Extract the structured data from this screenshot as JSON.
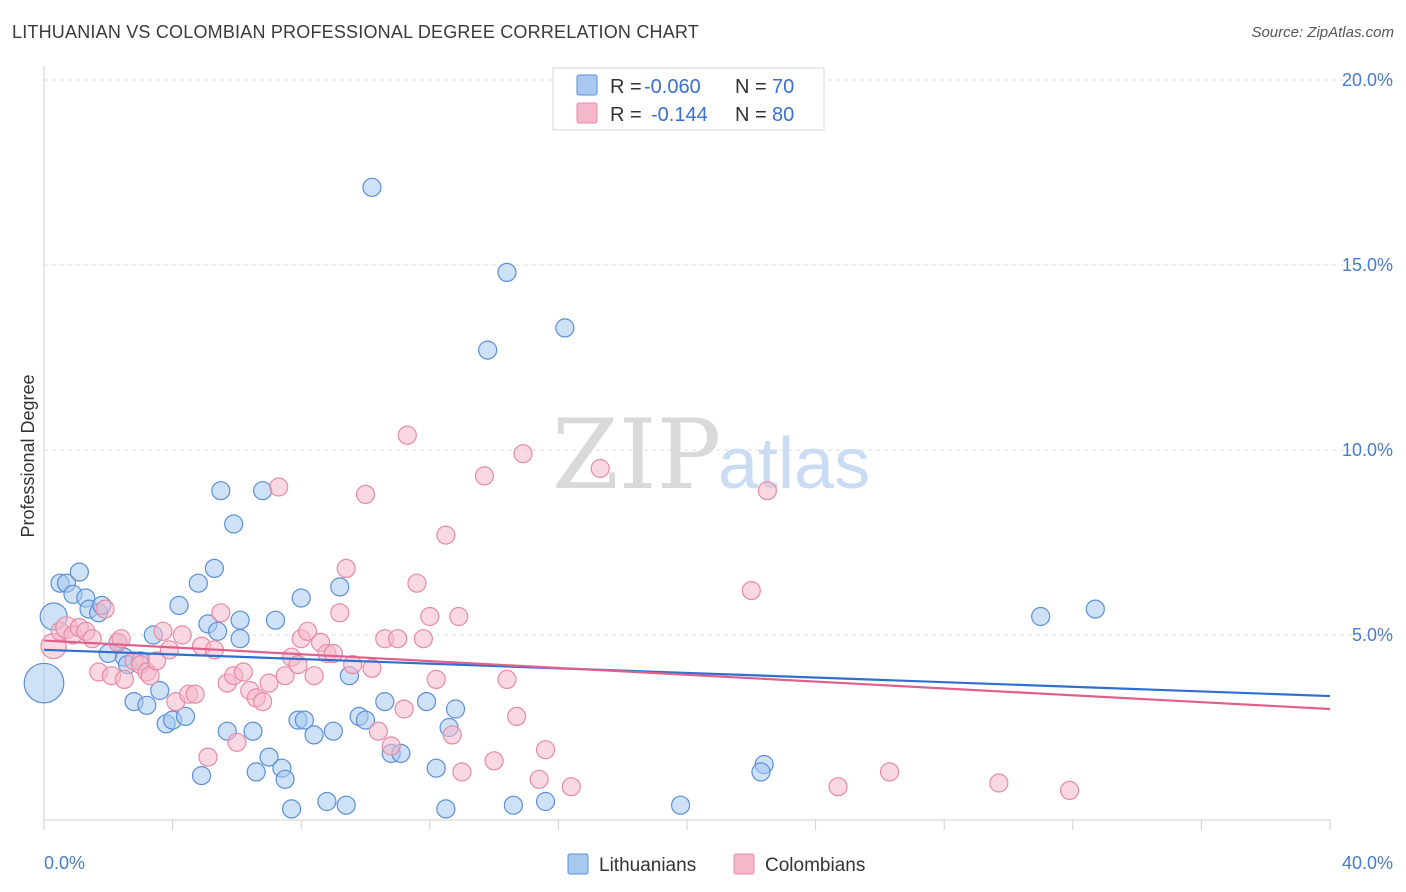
{
  "header": {
    "title": "LITHUANIAN VS COLOMBIAN PROFESSIONAL DEGREE CORRELATION CHART",
    "source": "Source: ZipAtlas.com"
  },
  "watermark": {
    "zip": "ZIP",
    "atlas": "atlas"
  },
  "legend": {
    "rows": [
      {
        "r_label": "R =",
        "r_value": "-0.060",
        "n_label": "N =",
        "n_value": "70",
        "color": "#a8c8f0"
      },
      {
        "r_label": "R =",
        "r_value": "-0.144",
        "n_label": "N =",
        "n_value": "80",
        "color": "#f5b8c8"
      }
    ]
  },
  "bottom_legend": [
    {
      "label": "Lithuanians",
      "color": "#a8c8f0"
    },
    {
      "label": "Colombians",
      "color": "#f5b8c8"
    }
  ],
  "colors": {
    "blue_fill": "#a8c8f0",
    "blue_stroke": "#5b8fd6",
    "blue_line": "#2f6fd0",
    "pink_fill": "#f5b8c8",
    "pink_stroke": "#e68aa6",
    "pink_line": "#e0608c",
    "tick": "#4a7bc8",
    "grid": "#dcdcdc"
  },
  "chart_data": {
    "type": "scatter",
    "title": "LITHUANIAN VS COLOMBIAN PROFESSIONAL DEGREE CORRELATION CHART",
    "xlabel": "",
    "ylabel": "Professional Degree",
    "xlim": [
      0,
      40
    ],
    "ylim": [
      0,
      20
    ],
    "x_tick_labels": [
      "0.0%",
      "40.0%"
    ],
    "y_ticks": [
      5,
      10,
      15,
      20
    ],
    "y_tick_labels": [
      "5.0%",
      "10.0%",
      "15.0%",
      "20.0%"
    ],
    "grid": true,
    "legend_placement": "top-center",
    "series": [
      {
        "name": "Lithuanians",
        "r": -0.06,
        "n": 70,
        "trend": {
          "x": [
            0,
            40
          ],
          "y": [
            4.6,
            3.35
          ]
        },
        "points": [
          {
            "x": 0.0,
            "y": 3.7,
            "s": 2.2
          },
          {
            "x": 0.3,
            "y": 5.5,
            "s": 1.5
          },
          {
            "x": 0.5,
            "y": 6.4,
            "s": 1
          },
          {
            "x": 0.7,
            "y": 6.4,
            "s": 1
          },
          {
            "x": 0.9,
            "y": 6.1,
            "s": 1
          },
          {
            "x": 1.1,
            "y": 6.7,
            "s": 1
          },
          {
            "x": 1.3,
            "y": 6.0,
            "s": 1
          },
          {
            "x": 1.4,
            "y": 5.7,
            "s": 1
          },
          {
            "x": 1.7,
            "y": 5.6,
            "s": 1
          },
          {
            "x": 1.8,
            "y": 5.8,
            "s": 1
          },
          {
            "x": 2.0,
            "y": 4.5,
            "s": 1
          },
          {
            "x": 2.3,
            "y": 4.8,
            "s": 1
          },
          {
            "x": 2.5,
            "y": 4.4,
            "s": 1
          },
          {
            "x": 2.6,
            "y": 4.2,
            "s": 1
          },
          {
            "x": 2.8,
            "y": 3.2,
            "s": 1
          },
          {
            "x": 3.0,
            "y": 4.3,
            "s": 1
          },
          {
            "x": 3.2,
            "y": 3.1,
            "s": 1
          },
          {
            "x": 3.4,
            "y": 5.0,
            "s": 1
          },
          {
            "x": 3.6,
            "y": 3.5,
            "s": 1
          },
          {
            "x": 3.8,
            "y": 2.6,
            "s": 1
          },
          {
            "x": 4.0,
            "y": 2.7,
            "s": 1
          },
          {
            "x": 4.2,
            "y": 5.8,
            "s": 1
          },
          {
            "x": 4.4,
            "y": 2.8,
            "s": 1
          },
          {
            "x": 4.8,
            "y": 6.4,
            "s": 1
          },
          {
            "x": 4.9,
            "y": 1.2,
            "s": 1
          },
          {
            "x": 5.1,
            "y": 5.3,
            "s": 1
          },
          {
            "x": 5.3,
            "y": 6.8,
            "s": 1
          },
          {
            "x": 5.4,
            "y": 5.1,
            "s": 1
          },
          {
            "x": 5.5,
            "y": 8.9,
            "s": 1
          },
          {
            "x": 5.9,
            "y": 8.0,
            "s": 1
          },
          {
            "x": 5.7,
            "y": 2.4,
            "s": 1
          },
          {
            "x": 6.1,
            "y": 5.4,
            "s": 1
          },
          {
            "x": 6.1,
            "y": 4.9,
            "s": 1
          },
          {
            "x": 6.5,
            "y": 2.4,
            "s": 1
          },
          {
            "x": 6.6,
            "y": 1.3,
            "s": 1
          },
          {
            "x": 6.8,
            "y": 8.9,
            "s": 1
          },
          {
            "x": 7.0,
            "y": 1.7,
            "s": 1
          },
          {
            "x": 7.2,
            "y": 5.4,
            "s": 1
          },
          {
            "x": 7.4,
            "y": 1.4,
            "s": 1
          },
          {
            "x": 7.5,
            "y": 1.1,
            "s": 1
          },
          {
            "x": 7.7,
            "y": 0.3,
            "s": 1
          },
          {
            "x": 7.9,
            "y": 2.7,
            "s": 1
          },
          {
            "x": 8.0,
            "y": 6.0,
            "s": 1
          },
          {
            "x": 8.1,
            "y": 2.7,
            "s": 1
          },
          {
            "x": 8.4,
            "y": 2.3,
            "s": 1
          },
          {
            "x": 8.8,
            "y": 0.5,
            "s": 1
          },
          {
            "x": 9.0,
            "y": 2.4,
            "s": 1
          },
          {
            "x": 9.2,
            "y": 6.3,
            "s": 1
          },
          {
            "x": 9.4,
            "y": 0.4,
            "s": 1
          },
          {
            "x": 9.5,
            "y": 3.9,
            "s": 1
          },
          {
            "x": 9.8,
            "y": 2.8,
            "s": 1
          },
          {
            "x": 10.0,
            "y": 2.7,
            "s": 1
          },
          {
            "x": 10.2,
            "y": 17.1,
            "s": 1
          },
          {
            "x": 10.6,
            "y": 3.2,
            "s": 1
          },
          {
            "x": 10.8,
            "y": 1.8,
            "s": 1
          },
          {
            "x": 11.1,
            "y": 1.8,
            "s": 1
          },
          {
            "x": 11.9,
            "y": 3.2,
            "s": 1
          },
          {
            "x": 12.2,
            "y": 1.4,
            "s": 1
          },
          {
            "x": 12.5,
            "y": 0.3,
            "s": 1
          },
          {
            "x": 12.6,
            "y": 2.5,
            "s": 1
          },
          {
            "x": 12.8,
            "y": 3.0,
            "s": 1
          },
          {
            "x": 13.8,
            "y": 12.7,
            "s": 1
          },
          {
            "x": 14.4,
            "y": 14.8,
            "s": 1
          },
          {
            "x": 14.6,
            "y": 0.4,
            "s": 1
          },
          {
            "x": 15.6,
            "y": 0.5,
            "s": 1
          },
          {
            "x": 16.2,
            "y": 13.3,
            "s": 1
          },
          {
            "x": 19.8,
            "y": 0.4,
            "s": 1
          },
          {
            "x": 22.4,
            "y": 1.5,
            "s": 1
          },
          {
            "x": 22.3,
            "y": 1.3,
            "s": 1
          },
          {
            "x": 31.0,
            "y": 5.5,
            "s": 1
          },
          {
            "x": 32.7,
            "y": 5.7,
            "s": 1
          }
        ]
      },
      {
        "name": "Colombians",
        "r": -0.144,
        "n": 80,
        "trend": {
          "x": [
            0,
            40
          ],
          "y": [
            4.85,
            3.0
          ]
        },
        "points": [
          {
            "x": 0.3,
            "y": 4.7,
            "s": 1.4
          },
          {
            "x": 0.5,
            "y": 5.1,
            "s": 1
          },
          {
            "x": 0.7,
            "y": 5.2,
            "s": 1.2
          },
          {
            "x": 0.9,
            "y": 5.0,
            "s": 1
          },
          {
            "x": 1.1,
            "y": 5.2,
            "s": 1
          },
          {
            "x": 1.3,
            "y": 5.1,
            "s": 1
          },
          {
            "x": 1.5,
            "y": 4.9,
            "s": 1
          },
          {
            "x": 1.7,
            "y": 4.0,
            "s": 1
          },
          {
            "x": 1.9,
            "y": 5.7,
            "s": 1
          },
          {
            "x": 2.1,
            "y": 3.9,
            "s": 1
          },
          {
            "x": 2.3,
            "y": 4.8,
            "s": 1
          },
          {
            "x": 2.5,
            "y": 3.8,
            "s": 1
          },
          {
            "x": 2.8,
            "y": 4.3,
            "s": 1
          },
          {
            "x": 3.0,
            "y": 4.2,
            "s": 1
          },
          {
            "x": 3.2,
            "y": 4.0,
            "s": 1
          },
          {
            "x": 3.3,
            "y": 3.9,
            "s": 1
          },
          {
            "x": 3.5,
            "y": 4.3,
            "s": 1
          },
          {
            "x": 3.7,
            "y": 5.1,
            "s": 1
          },
          {
            "x": 3.9,
            "y": 4.6,
            "s": 1
          },
          {
            "x": 4.1,
            "y": 3.2,
            "s": 1
          },
          {
            "x": 4.3,
            "y": 5.0,
            "s": 1
          },
          {
            "x": 4.5,
            "y": 3.4,
            "s": 1
          },
          {
            "x": 4.7,
            "y": 3.4,
            "s": 1
          },
          {
            "x": 4.9,
            "y": 4.7,
            "s": 1
          },
          {
            "x": 5.1,
            "y": 1.7,
            "s": 1
          },
          {
            "x": 5.3,
            "y": 4.6,
            "s": 1
          },
          {
            "x": 5.5,
            "y": 5.6,
            "s": 1
          },
          {
            "x": 5.7,
            "y": 3.7,
            "s": 1
          },
          {
            "x": 5.9,
            "y": 3.9,
            "s": 1
          },
          {
            "x": 6.0,
            "y": 2.1,
            "s": 1
          },
          {
            "x": 6.2,
            "y": 4.0,
            "s": 1
          },
          {
            "x": 6.4,
            "y": 3.5,
            "s": 1
          },
          {
            "x": 6.6,
            "y": 3.3,
            "s": 1
          },
          {
            "x": 6.8,
            "y": 3.2,
            "s": 1
          },
          {
            "x": 7.0,
            "y": 3.7,
            "s": 1
          },
          {
            "x": 7.3,
            "y": 9.0,
            "s": 1
          },
          {
            "x": 7.5,
            "y": 3.9,
            "s": 1
          },
          {
            "x": 7.7,
            "y": 4.4,
            "s": 1
          },
          {
            "x": 7.9,
            "y": 4.2,
            "s": 1
          },
          {
            "x": 8.0,
            "y": 4.9,
            "s": 1
          },
          {
            "x": 8.2,
            "y": 5.1,
            "s": 1
          },
          {
            "x": 8.4,
            "y": 3.9,
            "s": 1
          },
          {
            "x": 8.6,
            "y": 4.8,
            "s": 1
          },
          {
            "x": 8.8,
            "y": 4.5,
            "s": 1
          },
          {
            "x": 9.0,
            "y": 4.5,
            "s": 1
          },
          {
            "x": 9.2,
            "y": 5.6,
            "s": 1
          },
          {
            "x": 9.4,
            "y": 6.8,
            "s": 1
          },
          {
            "x": 9.6,
            "y": 4.2,
            "s": 1
          },
          {
            "x": 10.0,
            "y": 8.8,
            "s": 1
          },
          {
            "x": 10.2,
            "y": 4.1,
            "s": 1
          },
          {
            "x": 10.4,
            "y": 2.4,
            "s": 1
          },
          {
            "x": 10.6,
            "y": 4.9,
            "s": 1
          },
          {
            "x": 10.8,
            "y": 2.0,
            "s": 1
          },
          {
            "x": 11.0,
            "y": 4.9,
            "s": 1
          },
          {
            "x": 11.2,
            "y": 3.0,
            "s": 1
          },
          {
            "x": 11.3,
            "y": 10.4,
            "s": 1
          },
          {
            "x": 11.6,
            "y": 6.4,
            "s": 1
          },
          {
            "x": 11.8,
            "y": 4.9,
            "s": 1
          },
          {
            "x": 12.0,
            "y": 5.5,
            "s": 1
          },
          {
            "x": 12.2,
            "y": 3.8,
            "s": 1
          },
          {
            "x": 12.5,
            "y": 7.7,
            "s": 1
          },
          {
            "x": 12.7,
            "y": 2.3,
            "s": 1
          },
          {
            "x": 12.9,
            "y": 5.5,
            "s": 1
          },
          {
            "x": 13.0,
            "y": 1.3,
            "s": 1
          },
          {
            "x": 13.7,
            "y": 9.3,
            "s": 1
          },
          {
            "x": 14.0,
            "y": 1.6,
            "s": 1
          },
          {
            "x": 14.4,
            "y": 3.8,
            "s": 1
          },
          {
            "x": 14.7,
            "y": 2.8,
            "s": 1
          },
          {
            "x": 14.9,
            "y": 9.9,
            "s": 1
          },
          {
            "x": 15.4,
            "y": 1.1,
            "s": 1
          },
          {
            "x": 15.6,
            "y": 1.9,
            "s": 1
          },
          {
            "x": 16.4,
            "y": 0.9,
            "s": 1
          },
          {
            "x": 17.3,
            "y": 9.5,
            "s": 1
          },
          {
            "x": 22.0,
            "y": 6.2,
            "s": 1
          },
          {
            "x": 22.5,
            "y": 8.9,
            "s": 1
          },
          {
            "x": 24.7,
            "y": 0.9,
            "s": 1
          },
          {
            "x": 26.3,
            "y": 1.3,
            "s": 1
          },
          {
            "x": 29.7,
            "y": 1.0,
            "s": 1
          },
          {
            "x": 31.9,
            "y": 0.8,
            "s": 1
          },
          {
            "x": 2.4,
            "y": 4.9,
            "s": 1
          }
        ]
      }
    ]
  }
}
